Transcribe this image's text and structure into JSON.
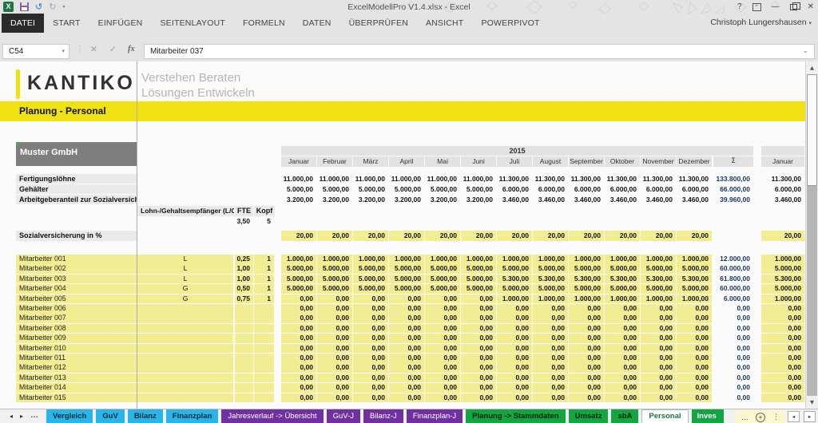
{
  "window": {
    "title": "ExcelModellPro V1.4.xlsx - Excel",
    "user": "Christoph Lungershausen",
    "controls": {
      "help": "?",
      "minimize": "—",
      "close": "✕"
    }
  },
  "icons": {
    "excel_logo": "X",
    "undo": "↺",
    "redo": "↻",
    "dropdown": "▾",
    "separator": "⋮",
    "cancel": "✕",
    "enter": "✓",
    "function": "fx",
    "formula_expand": "⌄",
    "nav_left": "◂",
    "nav_right": "▸",
    "overflow_dots": "…",
    "add_sheet": "+",
    "more": "⋮",
    "scroll_up": "▲",
    "scroll_down": "▼",
    "ribbon_display": "^"
  },
  "ribbon": {
    "tabs": [
      "DATEI",
      "START",
      "EINFÜGEN",
      "SEITENLAYOUT",
      "FORMELN",
      "DATEN",
      "ÜBERPRÜFEN",
      "ANSICHT",
      "POWERPIVOT"
    ],
    "active_tab": "DATEI"
  },
  "formula_bar": {
    "name_box": "C54",
    "formula": "Mitarbeiter 037"
  },
  "brand": {
    "logo": "KANTIKO",
    "slogan_line1": "Verstehen Beraten",
    "slogan_line2": "Lösungen Entwickeln"
  },
  "sheet": {
    "page_title": "Planung - Personal",
    "company": "Muster GmbH",
    "year": "2015",
    "months": [
      "Januar",
      "Februar",
      "März",
      "April",
      "Mai",
      "Juni",
      "Juli",
      "August",
      "September",
      "Oktober",
      "November",
      "Dezember"
    ],
    "sum_label": "Σ",
    "next_month_label": "Januar",
    "payroll_header": {
      "employees_col": "Lohn-/Gehaltsempfänger (L/G)",
      "fte_col": "FTE",
      "head_col": "Kopf",
      "fte_total": "3,50",
      "head_total": "5"
    },
    "summary_rows": [
      {
        "label": "Fertigungslöhne",
        "values": [
          "11.000,00",
          "11.000,00",
          "11.000,00",
          "11.000,00",
          "11.000,00",
          "11.000,00",
          "11.300,00",
          "11.300,00",
          "11.300,00",
          "11.300,00",
          "11.300,00",
          "11.300,00"
        ],
        "sum": "133.800,00",
        "next": "11.300,00"
      },
      {
        "label": "Gehälter",
        "values": [
          "5.000,00",
          "5.000,00",
          "5.000,00",
          "5.000,00",
          "5.000,00",
          "5.000,00",
          "6.000,00",
          "6.000,00",
          "6.000,00",
          "6.000,00",
          "6.000,00",
          "6.000,00"
        ],
        "sum": "66.000,00",
        "next": "6.000,00"
      },
      {
        "label": "Arbeitgeberanteil zur Sozialversicherung",
        "values": [
          "3.200,00",
          "3.200,00",
          "3.200,00",
          "3.200,00",
          "3.200,00",
          "3.200,00",
          "3.460,00",
          "3.460,00",
          "3.460,00",
          "3.460,00",
          "3.460,00",
          "3.460,00"
        ],
        "sum": "39.960,00",
        "next": "3.460,00"
      }
    ],
    "social_row": {
      "label": "Sozialversicherung in %",
      "values": [
        "20,00",
        "20,00",
        "20,00",
        "20,00",
        "20,00",
        "20,00",
        "20,00",
        "20,00",
        "20,00",
        "20,00",
        "20,00",
        "20,00"
      ],
      "next": "20,00"
    },
    "employees": [
      {
        "name": "Mitarbeiter 001",
        "lg": "L",
        "fte": "0,25",
        "kopf": "1",
        "values": [
          "1.000,00",
          "1.000,00",
          "1.000,00",
          "1.000,00",
          "1.000,00",
          "1.000,00",
          "1.000,00",
          "1.000,00",
          "1.000,00",
          "1.000,00",
          "1.000,00",
          "1.000,00"
        ],
        "sum": "12.000,00",
        "next": "1.000,00"
      },
      {
        "name": "Mitarbeiter 002",
        "lg": "L",
        "fte": "1,00",
        "kopf": "1",
        "values": [
          "5.000,00",
          "5.000,00",
          "5.000,00",
          "5.000,00",
          "5.000,00",
          "5.000,00",
          "5.000,00",
          "5.000,00",
          "5.000,00",
          "5.000,00",
          "5.000,00",
          "5.000,00"
        ],
        "sum": "60.000,00",
        "next": "5.000,00"
      },
      {
        "name": "Mitarbeiter 003",
        "lg": "L",
        "fte": "1,00",
        "kopf": "1",
        "values": [
          "5.000,00",
          "5.000,00",
          "5.000,00",
          "5.000,00",
          "5.000,00",
          "5.000,00",
          "5.300,00",
          "5.300,00",
          "5.300,00",
          "5.300,00",
          "5.300,00",
          "5.300,00"
        ],
        "sum": "61.800,00",
        "next": "5.300,00"
      },
      {
        "name": "Mitarbeiter 004",
        "lg": "G",
        "fte": "0,50",
        "kopf": "1",
        "values": [
          "5.000,00",
          "5.000,00",
          "5.000,00",
          "5.000,00",
          "5.000,00",
          "5.000,00",
          "5.000,00",
          "5.000,00",
          "5.000,00",
          "5.000,00",
          "5.000,00",
          "5.000,00"
        ],
        "sum": "60.000,00",
        "next": "5.000,00"
      },
      {
        "name": "Mitarbeiter 005",
        "lg": "G",
        "fte": "0,75",
        "kopf": "1",
        "values": [
          "0,00",
          "0,00",
          "0,00",
          "0,00",
          "0,00",
          "0,00",
          "1.000,00",
          "1.000,00",
          "1.000,00",
          "1.000,00",
          "1.000,00",
          "1.000,00"
        ],
        "sum": "6.000,00",
        "next": "1.000,00"
      },
      {
        "name": "Mitarbeiter 006",
        "lg": "",
        "fte": "",
        "kopf": "",
        "values": [
          "0,00",
          "0,00",
          "0,00",
          "0,00",
          "0,00",
          "0,00",
          "0,00",
          "0,00",
          "0,00",
          "0,00",
          "0,00",
          "0,00"
        ],
        "sum": "0,00",
        "next": "0,00"
      },
      {
        "name": "Mitarbeiter 007",
        "lg": "",
        "fte": "",
        "kopf": "",
        "values": [
          "0,00",
          "0,00",
          "0,00",
          "0,00",
          "0,00",
          "0,00",
          "0,00",
          "0,00",
          "0,00",
          "0,00",
          "0,00",
          "0,00"
        ],
        "sum": "0,00",
        "next": "0,00"
      },
      {
        "name": "Mitarbeiter 008",
        "lg": "",
        "fte": "",
        "kopf": "",
        "values": [
          "0,00",
          "0,00",
          "0,00",
          "0,00",
          "0,00",
          "0,00",
          "0,00",
          "0,00",
          "0,00",
          "0,00",
          "0,00",
          "0,00"
        ],
        "sum": "0,00",
        "next": "0,00"
      },
      {
        "name": "Mitarbeiter 009",
        "lg": "",
        "fte": "",
        "kopf": "",
        "values": [
          "0,00",
          "0,00",
          "0,00",
          "0,00",
          "0,00",
          "0,00",
          "0,00",
          "0,00",
          "0,00",
          "0,00",
          "0,00",
          "0,00"
        ],
        "sum": "0,00",
        "next": "0,00"
      },
      {
        "name": "Mitarbeiter 010",
        "lg": "",
        "fte": "",
        "kopf": "",
        "values": [
          "0,00",
          "0,00",
          "0,00",
          "0,00",
          "0,00",
          "0,00",
          "0,00",
          "0,00",
          "0,00",
          "0,00",
          "0,00",
          "0,00"
        ],
        "sum": "0,00",
        "next": "0,00"
      },
      {
        "name": "Mitarbeiter 011",
        "lg": "",
        "fte": "",
        "kopf": "",
        "values": [
          "0,00",
          "0,00",
          "0,00",
          "0,00",
          "0,00",
          "0,00",
          "0,00",
          "0,00",
          "0,00",
          "0,00",
          "0,00",
          "0,00"
        ],
        "sum": "0,00",
        "next": "0,00"
      },
      {
        "name": "Mitarbeiter 012",
        "lg": "",
        "fte": "",
        "kopf": "",
        "values": [
          "0,00",
          "0,00",
          "0,00",
          "0,00",
          "0,00",
          "0,00",
          "0,00",
          "0,00",
          "0,00",
          "0,00",
          "0,00",
          "0,00"
        ],
        "sum": "0,00",
        "next": "0,00"
      },
      {
        "name": "Mitarbeiter 013",
        "lg": "",
        "fte": "",
        "kopf": "",
        "values": [
          "0,00",
          "0,00",
          "0,00",
          "0,00",
          "0,00",
          "0,00",
          "0,00",
          "0,00",
          "0,00",
          "0,00",
          "0,00",
          "0,00"
        ],
        "sum": "0,00",
        "next": "0,00"
      },
      {
        "name": "Mitarbeiter 014",
        "lg": "",
        "fte": "",
        "kopf": "",
        "values": [
          "0,00",
          "0,00",
          "0,00",
          "0,00",
          "0,00",
          "0,00",
          "0,00",
          "0,00",
          "0,00",
          "0,00",
          "0,00",
          "0,00"
        ],
        "sum": "0,00",
        "next": "0,00"
      },
      {
        "name": "Mitarbeiter 015",
        "lg": "",
        "fte": "",
        "kopf": "",
        "values": [
          "0,00",
          "0,00",
          "0,00",
          "0,00",
          "0,00",
          "0,00",
          "0,00",
          "0,00",
          "0,00",
          "0,00",
          "0,00",
          "0,00"
        ],
        "sum": "0,00",
        "next": "0,00"
      }
    ]
  },
  "sheet_tabs": {
    "items": [
      {
        "label": "Vergleich",
        "style": "cyan"
      },
      {
        "label": "GuV",
        "style": "cyan"
      },
      {
        "label": "Bilanz",
        "style": "cyan"
      },
      {
        "label": "Finanzplan",
        "style": "cyan"
      },
      {
        "label": "Jahresverlauf -> Übersicht",
        "style": "purple"
      },
      {
        "label": "GuV-J",
        "style": "purple"
      },
      {
        "label": "Bilanz-J",
        "style": "purple"
      },
      {
        "label": "Finanzplan-J",
        "style": "purple"
      },
      {
        "label": "Planung -> Stammdaten",
        "style": "green"
      },
      {
        "label": "Umsatz",
        "style": "green"
      },
      {
        "label": "sbA",
        "style": "green"
      },
      {
        "label": "Personal",
        "style": "active"
      },
      {
        "label": "Inves",
        "style": "green-white cut"
      }
    ],
    "active": "Personal"
  },
  "colors": {
    "accent_yellow": "#EFE112",
    "cell_yellow": "#F2EC93",
    "tab_cyan": "#29B5E8",
    "tab_purple": "#7030A0",
    "tab_green": "#12A541",
    "active_tab_text": "#1E7145",
    "sum_text": "#17365D"
  }
}
